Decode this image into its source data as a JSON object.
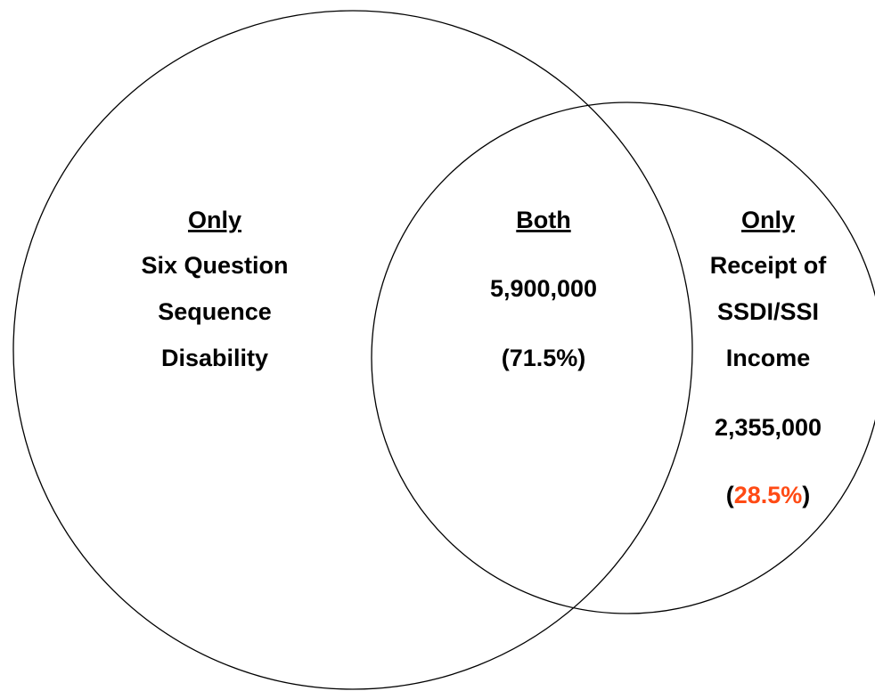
{
  "regions": [
    {
      "heading": "Only",
      "lines": [
        "Six Question",
        "Sequence",
        "Disability"
      ]
    },
    {
      "heading": "Both",
      "lines": [
        "5,900,000",
        "(71.5%)"
      ]
    },
    {
      "heading": "Only",
      "lines": [
        "Receipt of",
        "SSDI/SSI",
        "Income",
        "2,355,000"
      ],
      "percent": {
        "open": "(",
        "value": "28.5%",
        "close": ")"
      }
    }
  ]
}
